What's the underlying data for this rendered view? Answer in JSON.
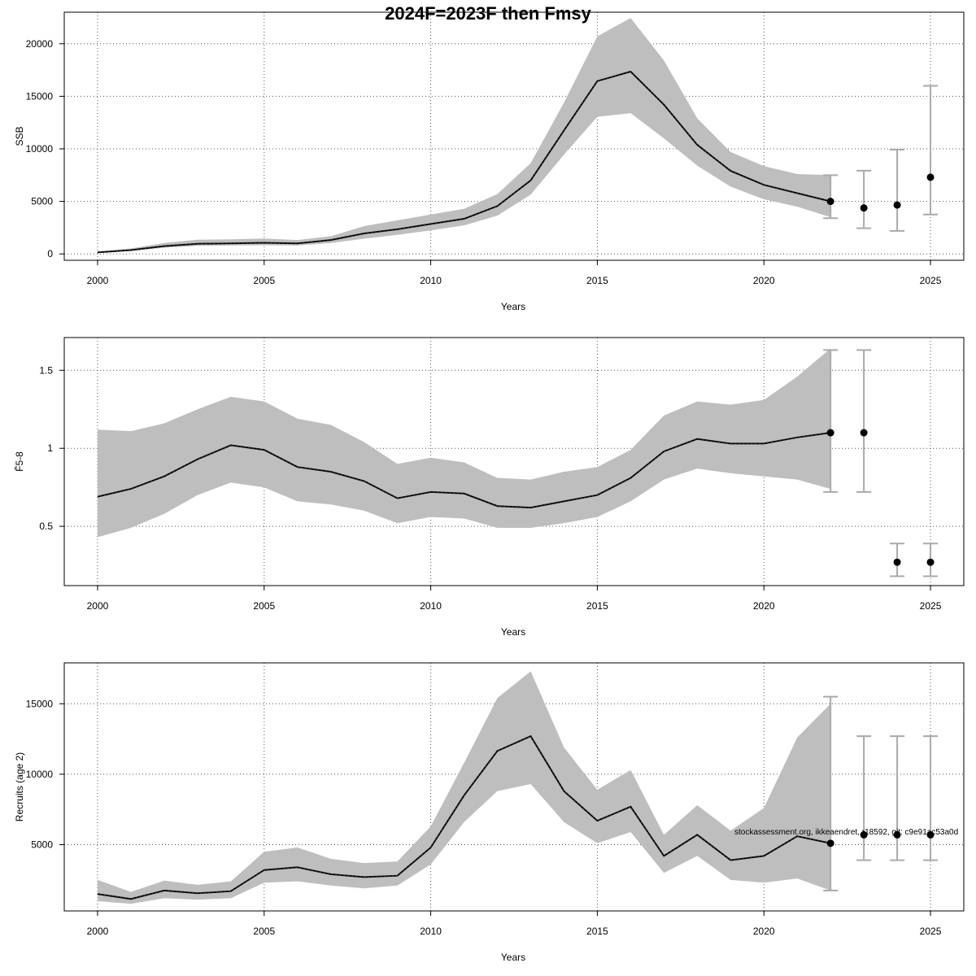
{
  "title": "2024F=2023F then Fmsy",
  "stamp": "stockassessment.org, ikkeaendret, r18592, git: c9e91ac53a0d",
  "colors": {
    "band": "#bebebe",
    "line": "#222222",
    "point": "#000000",
    "errorbar": "#aaaaaa",
    "grid": "#555555"
  },
  "chart_data": [
    {
      "type": "line",
      "name": "ssb",
      "ylabel": "SSB",
      "xlabel": "Years",
      "xlim": [
        1999,
        2026
      ],
      "ylim": [
        -600,
        23000
      ],
      "grid": true,
      "x_ticks": [
        2000,
        2005,
        2010,
        2015,
        2020,
        2025
      ],
      "y_ticks": [
        0,
        5000,
        10000,
        15000,
        20000
      ],
      "series": [
        {
          "x": [
            2000,
            2001,
            2002,
            2003,
            2004,
            2005,
            2006,
            2007,
            2008,
            2009,
            2010,
            2011,
            2012,
            2013,
            2014,
            2015,
            2016,
            2017,
            2018,
            2019,
            2020,
            2021,
            2022
          ],
          "estimate": [
            150,
            370,
            750,
            970,
            1010,
            1060,
            1000,
            1330,
            1950,
            2350,
            2850,
            3350,
            4550,
            7000,
            11750,
            16450,
            17350,
            14200,
            10380,
            7900,
            6570,
            5780,
            5000
          ],
          "lower": [
            110,
            290,
            600,
            780,
            810,
            830,
            800,
            1050,
            1450,
            1820,
            2250,
            2720,
            3650,
            5650,
            9450,
            13050,
            13400,
            11000,
            8400,
            6400,
            5200,
            4500,
            3500
          ],
          "upper": [
            230,
            520,
            1050,
            1350,
            1390,
            1470,
            1330,
            1680,
            2650,
            3200,
            3750,
            4300,
            5700,
            8650,
            14400,
            20700,
            22450,
            18400,
            12900,
            9700,
            8350,
            7600,
            7500
          ]
        }
      ],
      "forecast": {
        "x": [
          2022,
          2023,
          2024,
          2025
        ],
        "estimate": [
          5000,
          4380,
          4660,
          7300
        ],
        "lower": [
          3400,
          2450,
          2200,
          3750
        ],
        "upper": [
          7500,
          7920,
          9920,
          16000
        ]
      }
    },
    {
      "type": "line",
      "name": "fbar",
      "ylabel": "F̄5-8",
      "xlabel": "Years",
      "xlim": [
        1999,
        2026
      ],
      "ylim": [
        0.12,
        1.71
      ],
      "grid": true,
      "x_ticks": [
        2000,
        2005,
        2010,
        2015,
        2020,
        2025
      ],
      "y_ticks": [
        0.5,
        1.0,
        1.5
      ],
      "series": [
        {
          "x": [
            2000,
            2001,
            2002,
            2003,
            2004,
            2005,
            2006,
            2007,
            2008,
            2009,
            2010,
            2011,
            2012,
            2013,
            2014,
            2015,
            2016,
            2017,
            2018,
            2019,
            2020,
            2021,
            2022
          ],
          "estimate": [
            0.69,
            0.74,
            0.82,
            0.93,
            1.02,
            0.99,
            0.88,
            0.85,
            0.79,
            0.68,
            0.72,
            0.71,
            0.63,
            0.62,
            0.66,
            0.7,
            0.81,
            0.98,
            1.06,
            1.03,
            1.03,
            1.07,
            1.1
          ],
          "lower": [
            0.43,
            0.49,
            0.58,
            0.7,
            0.78,
            0.75,
            0.66,
            0.64,
            0.6,
            0.52,
            0.56,
            0.55,
            0.49,
            0.49,
            0.52,
            0.56,
            0.66,
            0.8,
            0.87,
            0.84,
            0.82,
            0.8,
            0.74
          ],
          "upper": [
            1.12,
            1.11,
            1.16,
            1.25,
            1.33,
            1.3,
            1.19,
            1.15,
            1.04,
            0.9,
            0.94,
            0.91,
            0.81,
            0.8,
            0.85,
            0.88,
            0.99,
            1.21,
            1.3,
            1.28,
            1.31,
            1.46,
            1.64
          ]
        }
      ],
      "forecast": {
        "x": [
          2022,
          2023,
          2024,
          2025
        ],
        "estimate": [
          1.1,
          1.1,
          0.27,
          0.27
        ],
        "lower": [
          0.72,
          0.72,
          0.18,
          0.18
        ],
        "upper": [
          1.63,
          1.63,
          0.39,
          0.39
        ]
      }
    },
    {
      "type": "line",
      "name": "recruits",
      "ylabel": "Recruits (age 2)",
      "xlabel": "Years",
      "xlim": [
        1999,
        2026
      ],
      "ylim": [
        300,
        17900
      ],
      "grid": true,
      "x_ticks": [
        2000,
        2005,
        2010,
        2015,
        2020,
        2025
      ],
      "y_ticks": [
        5000,
        10000,
        15000
      ],
      "series": [
        {
          "x": [
            2000,
            2001,
            2002,
            2003,
            2004,
            2005,
            2006,
            2007,
            2008,
            2009,
            2010,
            2011,
            2012,
            2013,
            2014,
            2015,
            2016,
            2017,
            2018,
            2019,
            2020,
            2021,
            2022
          ],
          "estimate": [
            1500,
            1150,
            1750,
            1550,
            1700,
            3200,
            3400,
            2900,
            2700,
            2800,
            4800,
            8500,
            11650,
            12700,
            8800,
            6700,
            7700,
            4200,
            5700,
            3900,
            4200,
            5600,
            5100
          ],
          "lower": [
            1000,
            800,
            1200,
            1100,
            1200,
            2300,
            2400,
            2100,
            1900,
            2100,
            3600,
            6600,
            8800,
            9300,
            6600,
            5100,
            5900,
            3000,
            4200,
            2500,
            2300,
            2600,
            1750
          ],
          "upper": [
            2500,
            1650,
            2450,
            2150,
            2400,
            4500,
            4800,
            4000,
            3700,
            3800,
            6300,
            10800,
            15400,
            17300,
            11900,
            8900,
            10300,
            5700,
            7800,
            6000,
            7600,
            12600,
            15000
          ]
        }
      ],
      "forecast": {
        "x": [
          2022,
          2023,
          2024,
          2025
        ],
        "estimate": [
          5100,
          5700,
          5700,
          5700
        ],
        "lower": [
          1750,
          3900,
          3900,
          3900
        ],
        "upper": [
          15500,
          12700,
          12700,
          12700
        ]
      }
    }
  ]
}
